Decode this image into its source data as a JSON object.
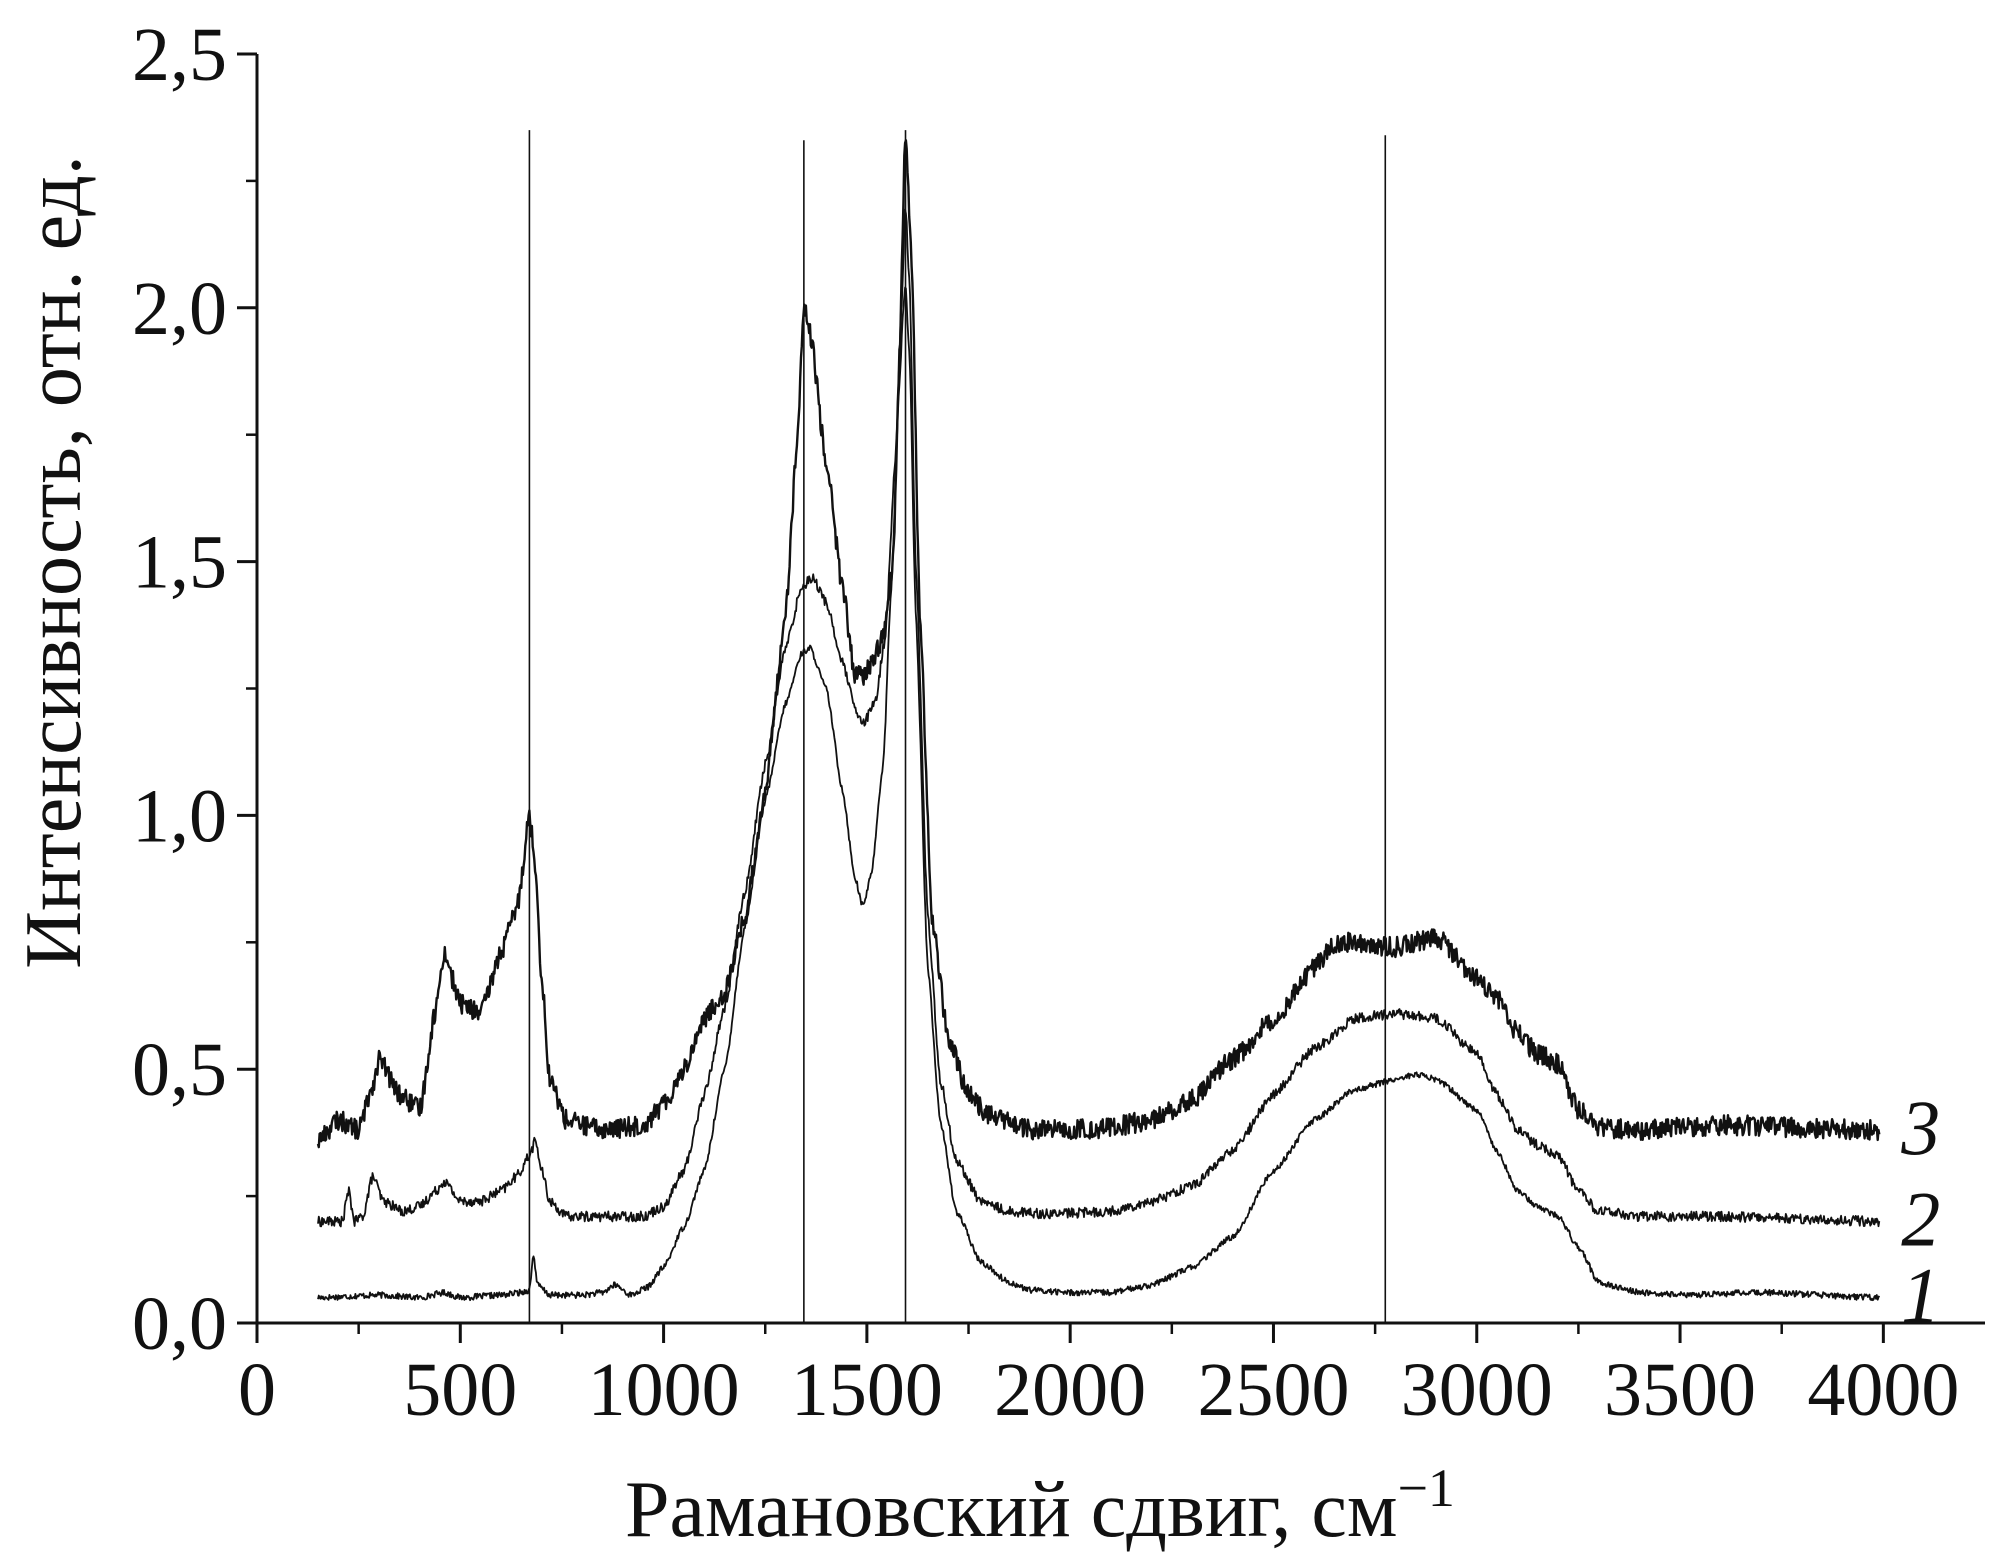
{
  "chart_data": {
    "type": "line",
    "xlabel": "Рамановский сдвиг, см",
    "xlabel_superscript": "−1",
    "ylabel": "Интенсивность, отн. ед.",
    "xlim": [
      0,
      4250
    ],
    "ylim": [
      0,
      2.5
    ],
    "x_ticks": [
      0,
      500,
      1000,
      1500,
      2000,
      2500,
      3000,
      3500,
      4000
    ],
    "x_tick_labels": [
      "0",
      "500",
      "1000",
      "1500",
      "2000",
      "2500",
      "3000",
      "3500",
      "4000"
    ],
    "y_ticks": [
      0,
      0.5,
      1.0,
      1.5,
      2.0,
      2.5
    ],
    "y_tick_labels": [
      "0,0",
      "0,5",
      "1,0",
      "1,5",
      "2,0",
      "2,5"
    ],
    "grid": false,
    "legend": "none",
    "reference_lines_x": [
      670,
      1345,
      1595,
      2775
    ],
    "line_color": "#111111",
    "series": [
      {
        "name": "1",
        "noise": 0.006,
        "points": [
          [
            150,
            0.05
          ],
          [
            300,
            0.055
          ],
          [
            400,
            0.05
          ],
          [
            460,
            0.06
          ],
          [
            500,
            0.05
          ],
          [
            600,
            0.055
          ],
          [
            650,
            0.06
          ],
          [
            670,
            0.065
          ],
          [
            680,
            0.135
          ],
          [
            690,
            0.075
          ],
          [
            720,
            0.055
          ],
          [
            800,
            0.055
          ],
          [
            850,
            0.06
          ],
          [
            880,
            0.075
          ],
          [
            920,
            0.055
          ],
          [
            960,
            0.07
          ],
          [
            1000,
            0.11
          ],
          [
            1050,
            0.19
          ],
          [
            1100,
            0.3
          ],
          [
            1150,
            0.5
          ],
          [
            1200,
            0.78
          ],
          [
            1250,
            1.03
          ],
          [
            1300,
            1.22
          ],
          [
            1340,
            1.32
          ],
          [
            1360,
            1.33
          ],
          [
            1400,
            1.25
          ],
          [
            1440,
            1.05
          ],
          [
            1470,
            0.88
          ],
          [
            1490,
            0.82
          ],
          [
            1510,
            0.88
          ],
          [
            1540,
            1.1
          ],
          [
            1560,
            1.45
          ],
          [
            1580,
            1.85
          ],
          [
            1590,
            2.0
          ],
          [
            1595,
            2.05
          ],
          [
            1605,
            1.9
          ],
          [
            1620,
            1.4
          ],
          [
            1650,
            0.7
          ],
          [
            1680,
            0.4
          ],
          [
            1720,
            0.22
          ],
          [
            1780,
            0.12
          ],
          [
            1850,
            0.08
          ],
          [
            1900,
            0.065
          ],
          [
            2000,
            0.06
          ],
          [
            2100,
            0.06
          ],
          [
            2200,
            0.075
          ],
          [
            2300,
            0.11
          ],
          [
            2400,
            0.17
          ],
          [
            2500,
            0.3
          ],
          [
            2600,
            0.4
          ],
          [
            2700,
            0.46
          ],
          [
            2800,
            0.48
          ],
          [
            2850,
            0.49
          ],
          [
            2900,
            0.48
          ],
          [
            3000,
            0.42
          ],
          [
            3050,
            0.34
          ],
          [
            3100,
            0.26
          ],
          [
            3150,
            0.23
          ],
          [
            3200,
            0.21
          ],
          [
            3250,
            0.15
          ],
          [
            3300,
            0.08
          ],
          [
            3400,
            0.06
          ],
          [
            3500,
            0.055
          ],
          [
            3700,
            0.06
          ],
          [
            3990,
            0.05
          ]
        ]
      },
      {
        "name": "2",
        "noise": 0.01,
        "points": [
          [
            150,
            0.2
          ],
          [
            210,
            0.2
          ],
          [
            225,
            0.26
          ],
          [
            240,
            0.2
          ],
          [
            260,
            0.21
          ],
          [
            285,
            0.29
          ],
          [
            310,
            0.24
          ],
          [
            360,
            0.22
          ],
          [
            400,
            0.23
          ],
          [
            440,
            0.26
          ],
          [
            460,
            0.28
          ],
          [
            500,
            0.24
          ],
          [
            550,
            0.24
          ],
          [
            600,
            0.26
          ],
          [
            640,
            0.29
          ],
          [
            670,
            0.33
          ],
          [
            685,
            0.36
          ],
          [
            700,
            0.3
          ],
          [
            720,
            0.24
          ],
          [
            760,
            0.21
          ],
          [
            850,
            0.21
          ],
          [
            950,
            0.21
          ],
          [
            1000,
            0.23
          ],
          [
            1050,
            0.3
          ],
          [
            1100,
            0.45
          ],
          [
            1150,
            0.62
          ],
          [
            1200,
            0.85
          ],
          [
            1250,
            1.1
          ],
          [
            1300,
            1.33
          ],
          [
            1340,
            1.45
          ],
          [
            1365,
            1.47
          ],
          [
            1400,
            1.42
          ],
          [
            1440,
            1.3
          ],
          [
            1475,
            1.2
          ],
          [
            1490,
            1.18
          ],
          [
            1520,
            1.22
          ],
          [
            1545,
            1.35
          ],
          [
            1570,
            1.7
          ],
          [
            1585,
            2.0
          ],
          [
            1595,
            2.2
          ],
          [
            1605,
            2.05
          ],
          [
            1620,
            1.5
          ],
          [
            1650,
            0.8
          ],
          [
            1680,
            0.48
          ],
          [
            1720,
            0.32
          ],
          [
            1780,
            0.24
          ],
          [
            1850,
            0.22
          ],
          [
            1950,
            0.215
          ],
          [
            2100,
            0.22
          ],
          [
            2200,
            0.24
          ],
          [
            2300,
            0.27
          ],
          [
            2400,
            0.34
          ],
          [
            2500,
            0.45
          ],
          [
            2600,
            0.54
          ],
          [
            2700,
            0.6
          ],
          [
            2800,
            0.61
          ],
          [
            2900,
            0.6
          ],
          [
            3000,
            0.53
          ],
          [
            3050,
            0.45
          ],
          [
            3100,
            0.38
          ],
          [
            3150,
            0.35
          ],
          [
            3200,
            0.33
          ],
          [
            3250,
            0.26
          ],
          [
            3300,
            0.22
          ],
          [
            3400,
            0.21
          ],
          [
            3600,
            0.21
          ],
          [
            3990,
            0.2
          ]
        ]
      },
      {
        "name": "3",
        "noise": 0.02,
        "points": [
          [
            150,
            0.36
          ],
          [
            200,
            0.4
          ],
          [
            250,
            0.38
          ],
          [
            285,
            0.47
          ],
          [
            300,
            0.52
          ],
          [
            350,
            0.45
          ],
          [
            400,
            0.42
          ],
          [
            440,
            0.62
          ],
          [
            460,
            0.73
          ],
          [
            500,
            0.63
          ],
          [
            550,
            0.61
          ],
          [
            600,
            0.73
          ],
          [
            640,
            0.82
          ],
          [
            670,
            1.0
          ],
          [
            685,
            0.9
          ],
          [
            700,
            0.68
          ],
          [
            720,
            0.48
          ],
          [
            760,
            0.4
          ],
          [
            850,
            0.38
          ],
          [
            950,
            0.39
          ],
          [
            1000,
            0.43
          ],
          [
            1050,
            0.5
          ],
          [
            1100,
            0.6
          ],
          [
            1150,
            0.65
          ],
          [
            1200,
            0.8
          ],
          [
            1250,
            1.05
          ],
          [
            1300,
            1.4
          ],
          [
            1330,
            1.75
          ],
          [
            1345,
            2.0
          ],
          [
            1360,
            1.95
          ],
          [
            1400,
            1.7
          ],
          [
            1440,
            1.45
          ],
          [
            1470,
            1.28
          ],
          [
            1490,
            1.27
          ],
          [
            1510,
            1.3
          ],
          [
            1540,
            1.35
          ],
          [
            1565,
            1.5
          ],
          [
            1580,
            1.9
          ],
          [
            1595,
            2.35
          ],
          [
            1610,
            2.1
          ],
          [
            1630,
            1.4
          ],
          [
            1660,
            0.8
          ],
          [
            1700,
            0.56
          ],
          [
            1750,
            0.45
          ],
          [
            1800,
            0.41
          ],
          [
            1900,
            0.38
          ],
          [
            2000,
            0.38
          ],
          [
            2100,
            0.385
          ],
          [
            2200,
            0.4
          ],
          [
            2300,
            0.44
          ],
          [
            2400,
            0.52
          ],
          [
            2500,
            0.6
          ],
          [
            2600,
            0.7
          ],
          [
            2650,
            0.75
          ],
          [
            2700,
            0.75
          ],
          [
            2800,
            0.74
          ],
          [
            2900,
            0.76
          ],
          [
            3000,
            0.68
          ],
          [
            3050,
            0.64
          ],
          [
            3100,
            0.57
          ],
          [
            3150,
            0.53
          ],
          [
            3200,
            0.51
          ],
          [
            3250,
            0.42
          ],
          [
            3300,
            0.385
          ],
          [
            3400,
            0.38
          ],
          [
            3600,
            0.39
          ],
          [
            3990,
            0.38
          ]
        ]
      }
    ]
  }
}
